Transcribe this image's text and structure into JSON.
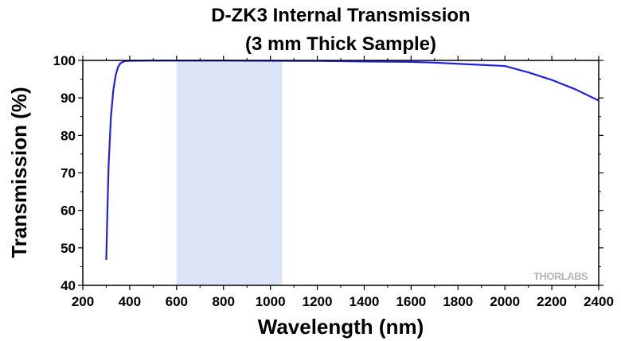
{
  "chart_data": {
    "type": "line",
    "title": [
      "D-ZK3 Internal Transmission",
      "(3 mm Thick Sample)"
    ],
    "xlabel": "Wavelength (nm)",
    "ylabel": "Transmission (%)",
    "xlim": [
      200,
      2400
    ],
    "ylim": [
      40,
      100
    ],
    "xticks": [
      200,
      400,
      600,
      800,
      1000,
      1200,
      1400,
      1600,
      1800,
      2000,
      2200,
      2400
    ],
    "yticks": [
      40,
      50,
      60,
      70,
      80,
      90,
      100
    ],
    "grid": false,
    "highlight_band": {
      "x_range": [
        600,
        1050
      ],
      "color": "#dce5f7"
    },
    "series": [
      {
        "color": "#2020e0",
        "x": [
          300,
          305,
          310,
          320,
          330,
          340,
          350,
          360,
          370,
          380,
          400,
          500,
          600,
          800,
          1000,
          1200,
          1400,
          1600,
          1700,
          1800,
          1900,
          2000,
          2100,
          2200,
          2300,
          2400
        ],
        "y": [
          46.8,
          60,
          72,
          85,
          92,
          96,
          98.2,
          99.2,
          99.6,
          99.8,
          99.9,
          99.95,
          99.95,
          99.95,
          99.9,
          99.85,
          99.7,
          99.6,
          99.4,
          99.1,
          98.8,
          98.5,
          96.8,
          94.8,
          92.3,
          89.3
        ]
      }
    ],
    "watermark": "THORLABS"
  }
}
